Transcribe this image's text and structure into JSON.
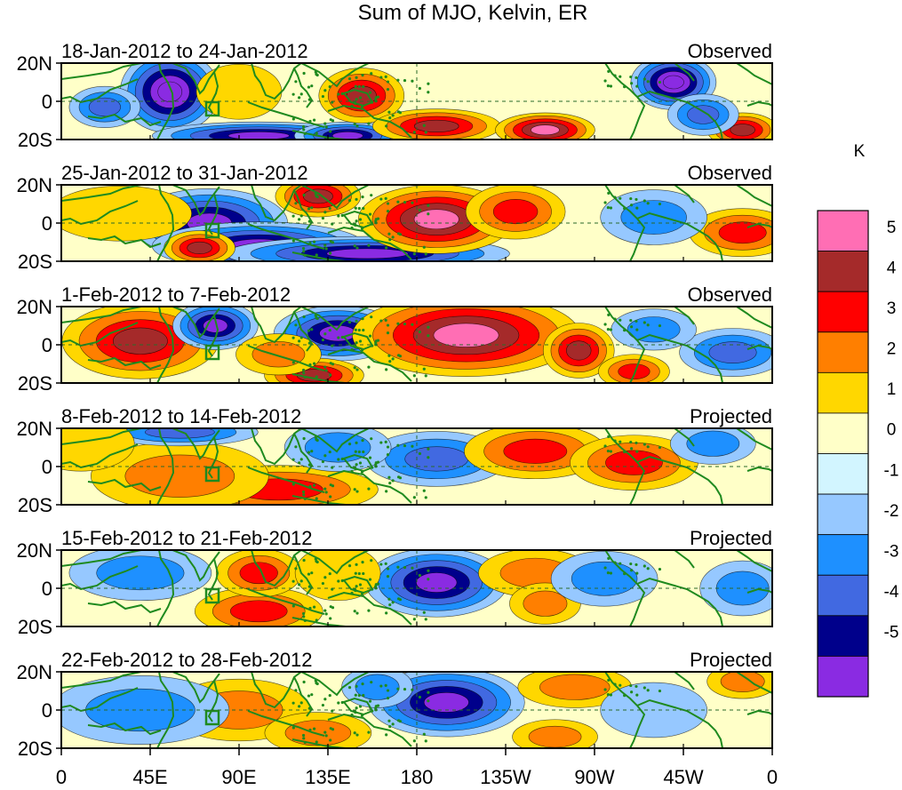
{
  "chart_data": {
    "type": "heatmap",
    "title": "Sum of MJO, Kelvin, ER",
    "units": "K",
    "x_ticks": [
      "0",
      "45E",
      "90E",
      "135E",
      "180",
      "135W",
      "90W",
      "45W",
      "0"
    ],
    "x_range_deg": [
      0,
      360
    ],
    "y_ticks": [
      "20N",
      "0",
      "20S"
    ],
    "y_range_deg": [
      -20,
      20
    ],
    "colorbar": {
      "labels": [
        "5",
        "4",
        "3",
        "2",
        "1",
        "0",
        "-1",
        "-2",
        "-3",
        "-4",
        "-5"
      ],
      "colors": [
        "#ff6eb4",
        "#a52a2a",
        "#ff0000",
        "#ff7f00",
        "#ffd700",
        "#ffffc8",
        "#d2f5ff",
        "#96c8ff",
        "#1e90ff",
        "#4169e1",
        "#00008b",
        "#8a2be2"
      ],
      "levels": [
        -5,
        -4,
        -3,
        -2,
        -1,
        0,
        1,
        2,
        3,
        4,
        5
      ]
    },
    "panels": [
      {
        "period": "18-Jan-2012 to 24-Jan-2012",
        "type": "Observed",
        "anomalies": [
          {
            "lon": 55,
            "lat": 5,
            "val": -6,
            "wlon": 14,
            "wlat": 12
          },
          {
            "lon": 22,
            "lat": -3,
            "val": -3.5,
            "wlon": 10,
            "wlat": 6
          },
          {
            "lon": 100,
            "lat": -18,
            "val": -5,
            "wlon": 30,
            "wlat": 4
          },
          {
            "lon": 145,
            "lat": -18,
            "val": -5,
            "wlon": 15,
            "wlat": 4
          },
          {
            "lon": 152,
            "lat": 3,
            "val": 4.5,
            "wlon": 12,
            "wlat": 8
          },
          {
            "lon": 190,
            "lat": -13,
            "val": 4,
            "wlon": 18,
            "wlat": 5
          },
          {
            "lon": 245,
            "lat": -15,
            "val": 5,
            "wlon": 14,
            "wlat": 5
          },
          {
            "lon": 310,
            "lat": 10,
            "val": -6,
            "wlon": 12,
            "wlat": 8
          },
          {
            "lon": 345,
            "lat": -15,
            "val": 4,
            "wlon": 10,
            "wlat": 5
          },
          {
            "lon": 90,
            "lat": 5,
            "val": 1.5,
            "wlon": 12,
            "wlat": 8
          },
          {
            "lon": 325,
            "lat": -7,
            "val": -3,
            "wlon": 10,
            "wlat": 6
          }
        ]
      },
      {
        "period": "25-Jan-2012 to 31-Jan-2012",
        "type": "Observed",
        "anomalies": [
          {
            "lon": 75,
            "lat": 0,
            "val": -5.5,
            "wlon": 22,
            "wlat": 10
          },
          {
            "lon": 100,
            "lat": -12,
            "val": -5,
            "wlon": 30,
            "wlat": 7
          },
          {
            "lon": 155,
            "lat": -16,
            "val": -5,
            "wlon": 40,
            "wlat": 5
          },
          {
            "lon": 190,
            "lat": 2,
            "val": 5.5,
            "wlon": 22,
            "wlat": 10
          },
          {
            "lon": 130,
            "lat": 14,
            "val": 4.5,
            "wlon": 12,
            "wlat": 6
          },
          {
            "lon": 70,
            "lat": -13,
            "val": 4.5,
            "wlon": 10,
            "wlat": 5
          },
          {
            "lon": 345,
            "lat": -5,
            "val": 3.5,
            "wlon": 15,
            "wlat": 7
          },
          {
            "lon": 300,
            "lat": 3,
            "val": -2.5,
            "wlon": 15,
            "wlat": 8
          },
          {
            "lon": 230,
            "lat": 6,
            "val": 3.5,
            "wlon": 14,
            "wlat": 8
          },
          {
            "lon": 30,
            "lat": 5,
            "val": 1.5,
            "wlon": 20,
            "wlat": 8
          }
        ]
      },
      {
        "period": "1-Feb-2012 to 7-Feb-2012",
        "type": "Observed",
        "anomalies": [
          {
            "lon": 40,
            "lat": 2,
            "val": 4,
            "wlon": 22,
            "wlat": 11
          },
          {
            "lon": 78,
            "lat": 10,
            "val": -5,
            "wlon": 12,
            "wlat": 7
          },
          {
            "lon": 140,
            "lat": 6,
            "val": -5,
            "wlon": 18,
            "wlat": 8
          },
          {
            "lon": 205,
            "lat": 5,
            "val": 5.5,
            "wlon": 32,
            "wlat": 12
          },
          {
            "lon": 262,
            "lat": -3,
            "val": 4.5,
            "wlon": 10,
            "wlat": 8
          },
          {
            "lon": 128,
            "lat": -16,
            "val": 4.5,
            "wlon": 14,
            "wlat": 5
          },
          {
            "lon": 340,
            "lat": -4,
            "val": -3,
            "wlon": 15,
            "wlat": 7
          },
          {
            "lon": 110,
            "lat": -5,
            "val": 2,
            "wlon": 12,
            "wlat": 6
          },
          {
            "lon": 290,
            "lat": -14,
            "val": 3,
            "wlon": 10,
            "wlat": 5
          },
          {
            "lon": 300,
            "lat": 8,
            "val": -2.5,
            "wlon": 12,
            "wlat": 6
          }
        ]
      },
      {
        "period": "8-Feb-2012 to 14-Feb-2012",
        "type": "Projected",
        "anomalies": [
          {
            "lon": 110,
            "lat": -12,
            "val": 3.5,
            "wlon": 28,
            "wlat": 7
          },
          {
            "lon": 60,
            "lat": -5,
            "val": 2,
            "wlon": 25,
            "wlat": 10
          },
          {
            "lon": 190,
            "lat": 4,
            "val": -3,
            "wlon": 20,
            "wlat": 8
          },
          {
            "lon": 240,
            "lat": 8,
            "val": 3,
            "wlon": 20,
            "wlat": 8
          },
          {
            "lon": 290,
            "lat": 2,
            "val": 3,
            "wlon": 18,
            "wlat": 8
          },
          {
            "lon": 60,
            "lat": 18,
            "val": -3,
            "wlon": 22,
            "wlat": 4
          },
          {
            "lon": 140,
            "lat": 10,
            "val": -2,
            "wlon": 15,
            "wlat": 7
          },
          {
            "lon": 10,
            "lat": 12,
            "val": 1.5,
            "wlon": 15,
            "wlat": 8
          },
          {
            "lon": 330,
            "lat": 12,
            "val": -2,
            "wlon": 12,
            "wlat": 6
          }
        ]
      },
      {
        "period": "15-Feb-2012 to 21-Feb-2012",
        "type": "Projected",
        "anomalies": [
          {
            "lon": 190,
            "lat": 3,
            "val": -5.5,
            "wlon": 20,
            "wlat": 10
          },
          {
            "lon": 100,
            "lat": -12,
            "val": 3.5,
            "wlon": 18,
            "wlat": 7
          },
          {
            "lon": 100,
            "lat": 8,
            "val": 3,
            "wlon": 12,
            "wlat": 7
          },
          {
            "lon": 240,
            "lat": 8,
            "val": 2.5,
            "wlon": 16,
            "wlat": 7
          },
          {
            "lon": 245,
            "lat": -8,
            "val": 2.5,
            "wlon": 10,
            "wlat": 6
          },
          {
            "lon": 275,
            "lat": 5,
            "val": -2.5,
            "wlon": 15,
            "wlat": 8
          },
          {
            "lon": 40,
            "lat": 8,
            "val": -2,
            "wlon": 20,
            "wlat": 8
          },
          {
            "lon": 140,
            "lat": 8,
            "val": 1.5,
            "wlon": 12,
            "wlat": 8
          },
          {
            "lon": 345,
            "lat": 0,
            "val": -2,
            "wlon": 12,
            "wlat": 8
          }
        ]
      },
      {
        "period": "22-Feb-2012 to 28-Feb-2012",
        "type": "Projected",
        "anomalies": [
          {
            "lon": 195,
            "lat": 4,
            "val": -5.5,
            "wlon": 22,
            "wlat": 10
          },
          {
            "lon": 90,
            "lat": 0,
            "val": 2.5,
            "wlon": 20,
            "wlat": 9
          },
          {
            "lon": 130,
            "lat": -12,
            "val": 2,
            "wlon": 15,
            "wlat": 6
          },
          {
            "lon": 260,
            "lat": 12,
            "val": 2.5,
            "wlon": 16,
            "wlat": 6
          },
          {
            "lon": 250,
            "lat": -14,
            "val": 2,
            "wlon": 12,
            "wlat": 5
          },
          {
            "lon": 40,
            "lat": 0,
            "val": -2,
            "wlon": 25,
            "wlat": 10
          },
          {
            "lon": 300,
            "lat": 0,
            "val": -1.5,
            "wlon": 15,
            "wlat": 8
          },
          {
            "lon": 345,
            "lat": 15,
            "val": 2,
            "wlon": 10,
            "wlat": 5
          },
          {
            "lon": 160,
            "lat": 12,
            "val": -2,
            "wlon": 10,
            "wlat": 6
          }
        ]
      }
    ]
  }
}
